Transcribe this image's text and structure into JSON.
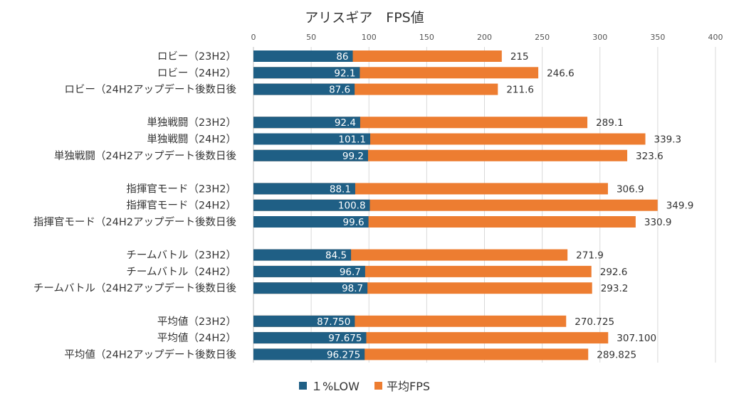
{
  "chart_data": {
    "type": "bar",
    "orientation": "horizontal",
    "stacked": false,
    "title": "アリスギア　FPS値",
    "xlim": [
      0,
      400
    ],
    "xticks": [
      0,
      50,
      100,
      150,
      200,
      250,
      300,
      350,
      400
    ],
    "xaxis_position": "top",
    "grid": true,
    "legend_position": "bottom",
    "colors": {
      "low": "#1f5f85",
      "avg": "#ed7d31",
      "grid": "#d9d9d9",
      "text": "#333333"
    },
    "groups": [
      {
        "categories": [
          "ロビー（23H2）",
          "ロビー（24H2）",
          "ロビー（24H2アップデート後数日後"
        ],
        "low": [
          86,
          92.1,
          87.6
        ],
        "avg": [
          215,
          246.6,
          211.6
        ],
        "low_labels": [
          "86",
          "92.1",
          "87.6"
        ],
        "avg_labels": [
          "215",
          "246.6",
          "211.6"
        ]
      },
      {
        "categories": [
          "単独戦闘（23H2）",
          "単独戦闘（24H2）",
          "単独戦闘（24H2アップデート後数日後"
        ],
        "low": [
          92.4,
          101.1,
          99.2
        ],
        "avg": [
          289.1,
          339.3,
          323.6
        ],
        "low_labels": [
          "92.4",
          "101.1",
          "99.2"
        ],
        "avg_labels": [
          "289.1",
          "339.3",
          "323.6"
        ]
      },
      {
        "categories": [
          "指揮官モード（23H2）",
          "指揮官モード（24H2）",
          "指揮官モード（24H2アップデート後数日後"
        ],
        "low": [
          88.1,
          100.8,
          99.6
        ],
        "avg": [
          306.9,
          349.9,
          330.9
        ],
        "low_labels": [
          "88.1",
          "100.8",
          "99.6"
        ],
        "avg_labels": [
          "306.9",
          "349.9",
          "330.9"
        ]
      },
      {
        "categories": [
          "チームバトル（23H2）",
          "チームバトル（24H2）",
          "チームバトル（24H2アップデート後数日後"
        ],
        "low": [
          84.5,
          96.7,
          98.7
        ],
        "avg": [
          271.9,
          292.6,
          293.2
        ],
        "low_labels": [
          "84.5",
          "96.7",
          "98.7"
        ],
        "avg_labels": [
          "271.9",
          "292.6",
          "293.2"
        ]
      },
      {
        "categories": [
          "平均値（23H2）",
          "平均値（24H2）",
          "平均値（24H2アップデート後数日後"
        ],
        "low": [
          87.75,
          97.675,
          96.275
        ],
        "avg": [
          270.725,
          307.1,
          289.825
        ],
        "low_labels": [
          "87.750",
          "97.675",
          "96.275"
        ],
        "avg_labels": [
          "270.725",
          "307.100",
          "289.825"
        ]
      }
    ],
    "series": [
      {
        "name": "１%LOW",
        "key": "low"
      },
      {
        "name": "平均FPS",
        "key": "avg"
      }
    ]
  }
}
